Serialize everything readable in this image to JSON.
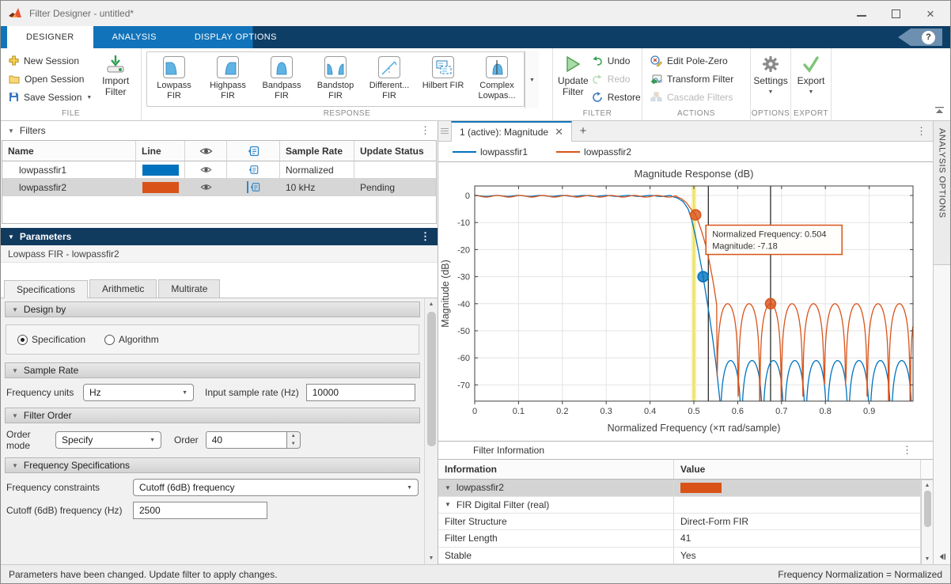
{
  "window": {
    "title": "Filter Designer - untitled*"
  },
  "tabs": {
    "items": [
      {
        "label": "DESIGNER"
      },
      {
        "label": "ANALYSIS"
      },
      {
        "label": "DISPLAY OPTIONS"
      }
    ],
    "help": "?"
  },
  "ribbon": {
    "file": {
      "section": "FILE",
      "new_session": "New Session",
      "open_session": "Open Session",
      "save_session": "Save Session",
      "import_l1": "Import",
      "import_l2": "Filter"
    },
    "response": {
      "section": "RESPONSE",
      "items": [
        {
          "l1": "Lowpass",
          "l2": "FIR"
        },
        {
          "l1": "Highpass",
          "l2": "FIR"
        },
        {
          "l1": "Bandpass",
          "l2": "FIR"
        },
        {
          "l1": "Bandstop",
          "l2": "FIR"
        },
        {
          "l1": "Different...",
          "l2": "FIR"
        },
        {
          "l1": "Hilbert FIR",
          "l2": ""
        },
        {
          "l1": "Complex",
          "l2": "Lowpas..."
        }
      ]
    },
    "filter": {
      "section": "FILTER",
      "update_l1": "Update",
      "update_l2": "Filter",
      "undo": "Undo",
      "redo": "Redo",
      "restore": "Restore"
    },
    "actions": {
      "section": "ACTIONS",
      "edit_pole_zero": "Edit Pole-Zero",
      "transform_filter": "Transform Filter",
      "cascade_filters": "Cascade Filters"
    },
    "options": {
      "section": "OPTIONS",
      "settings": "Settings"
    },
    "export": {
      "section": "EXPORT",
      "export": "Export"
    }
  },
  "filters_panel": {
    "title": "Filters",
    "col_name": "Name",
    "col_line": "Line",
    "col_sample_rate": "Sample Rate",
    "col_update_status": "Update Status",
    "rows": [
      {
        "name": "lowpassfir1",
        "line_color": "#0072BD",
        "sample_rate": "Normalized",
        "update_status": ""
      },
      {
        "name": "lowpassfir2",
        "line_color": "#D95319",
        "sample_rate": "10 kHz",
        "update_status": "Pending"
      }
    ]
  },
  "parameters": {
    "title": "Parameters",
    "subtitle": "Lowpass FIR - lowpassfir2",
    "tabs": [
      "Specifications",
      "Arithmetic",
      "Multirate"
    ],
    "design_by": {
      "title": "Design by",
      "opt1": "Specification",
      "opt2": "Algorithm"
    },
    "sample_rate": {
      "title": "Sample Rate",
      "units_label": "Frequency units",
      "units_value": "Hz",
      "rate_label": "Input sample rate (Hz)",
      "rate_value": "10000"
    },
    "filter_order": {
      "title": "Filter Order",
      "mode_label": "Order mode",
      "mode_value": "Specify",
      "order_label": "Order",
      "order_value": "40"
    },
    "freq_specs": {
      "title": "Frequency Specifications",
      "constraints_label": "Frequency constraints",
      "constraints_value": "Cutoff (6dB) frequency",
      "cutoff_label": "Cutoff (6dB) frequency (Hz)",
      "cutoff_value": "2500"
    }
  },
  "analysis": {
    "tab_label": "1 (active): Magnitude",
    "side_label": "ANALYSIS OPTIONS",
    "legend": [
      {
        "name": "lowpassfir1",
        "color": "#0072BD"
      },
      {
        "name": "lowpassfir2",
        "color": "#D95319"
      }
    ]
  },
  "chart_data": {
    "type": "line",
    "title": "Magnitude Response (dB)",
    "xlabel": "Normalized Frequency (×π rad/sample)",
    "ylabel": "Magnitude (dB)",
    "xlim": [
      0,
      1
    ],
    "ylim": [
      -76,
      3
    ],
    "grid": true,
    "legend_position": "top",
    "xticks": [
      0,
      0.1,
      0.2,
      0.3,
      0.4,
      0.5,
      0.6,
      0.7,
      0.8,
      0.9
    ],
    "yticks": [
      0,
      -10,
      -20,
      -30,
      -40,
      -50,
      -60,
      -70
    ],
    "series": [
      {
        "name": "lowpassfir1",
        "color": "#0072BD",
        "passband": {
          "end": 0.448,
          "ripple": 0.35,
          "period": 0.05
        },
        "transition": [
          [
            0.448,
            -0.25
          ],
          [
            0.462,
            -0.9
          ],
          [
            0.475,
            -2.2
          ],
          [
            0.487,
            -5
          ],
          [
            0.495,
            -9
          ],
          [
            0.503,
            -14.5
          ],
          [
            0.511,
            -21
          ],
          [
            0.519,
            -28
          ],
          [
            0.527,
            -36
          ],
          [
            0.535,
            -44
          ],
          [
            0.543,
            -53
          ],
          [
            0.551,
            -63
          ],
          [
            0.5595,
            -76
          ]
        ],
        "stopband": {
          "start": 0.5595,
          "floor": -61,
          "period": 0.0488
        }
      },
      {
        "name": "lowpassfir2",
        "color": "#D95319",
        "passband": {
          "end": 0.46,
          "ripple": 0.6,
          "period": 0.052
        },
        "transition": [
          [
            0.46,
            -0.4
          ],
          [
            0.472,
            -1.2
          ],
          [
            0.483,
            -2.7
          ],
          [
            0.493,
            -4.9
          ],
          [
            0.504,
            -7.18
          ],
          [
            0.512,
            -10.5
          ],
          [
            0.52,
            -14.5
          ],
          [
            0.528,
            -19
          ],
          [
            0.536,
            -25
          ],
          [
            0.543,
            -31
          ],
          [
            0.549,
            -37
          ],
          [
            0.5525,
            -41
          ]
        ],
        "stopband": {
          "start": 0.5525,
          "floor": -40,
          "period": 0.049
        }
      }
    ],
    "markers": [
      {
        "x": 0.504,
        "y": -7.18,
        "color": "#D95319"
      },
      {
        "x": 0.521,
        "y": -30,
        "color": "#0072BD"
      },
      {
        "x": 0.675,
        "y": -40,
        "color": "#D95319"
      }
    ],
    "vlines": [
      {
        "x": 0.5,
        "style": "band",
        "color": "#E8DC4A"
      },
      {
        "x": 0.533,
        "style": "line",
        "color": "#1a1a1a"
      },
      {
        "x": 0.675,
        "style": "line",
        "color": "#1a1a1a"
      }
    ],
    "tooltip": {
      "label1": "Normalized Frequency: 0.504",
      "label2": "Magnitude: -7.18",
      "x": 0.504,
      "y": -7.18,
      "border": "#D95319"
    }
  },
  "filter_info": {
    "title": "Filter Information",
    "col_info": "Information",
    "col_value": "Value",
    "rows": [
      {
        "label": "lowpassfir2",
        "value": "",
        "swatch": "#D95319"
      },
      {
        "label": "FIR Digital Filter (real)",
        "value": ""
      },
      {
        "label": "Filter Structure",
        "value": "Direct-Form FIR"
      },
      {
        "label": "Filter Length",
        "value": "41"
      },
      {
        "label": "Stable",
        "value": "Yes"
      }
    ]
  },
  "statusbar": {
    "left": "Parameters have been changed. Update filter to apply changes.",
    "right": "Frequency Normalization = Normalized"
  }
}
